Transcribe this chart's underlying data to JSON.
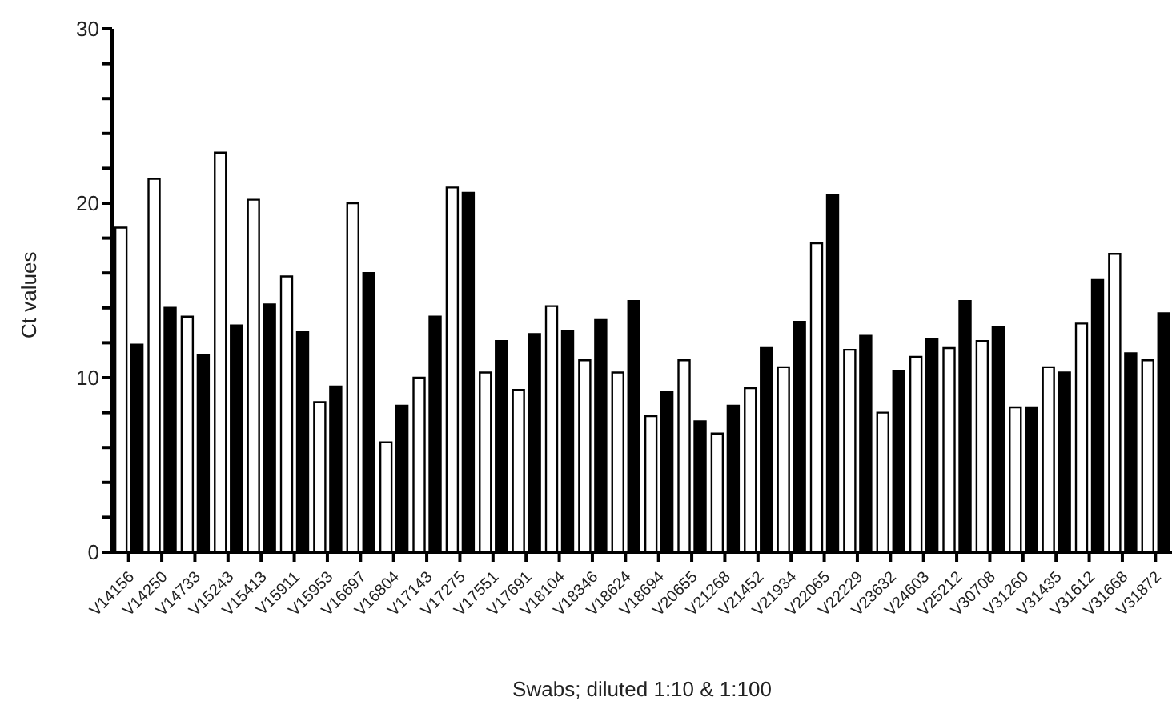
{
  "chart_data": {
    "type": "bar",
    "xlabel": "Swabs; diluted 1:10 & 1:100",
    "ylabel": "Ct values",
    "categories": [
      "V14156",
      "V14250",
      "V14733",
      "V15243",
      "V15413",
      "V15911",
      "V15953",
      "V16697",
      "V16804",
      "V17143",
      "V17275",
      "V17551",
      "V17691",
      "V18104",
      "V18346",
      "V18624",
      "V18694",
      "V20655",
      "V21268",
      "V21452",
      "V21934",
      "V22065",
      "V22229",
      "V23632",
      "V24603",
      "V25212",
      "V30708",
      "V31260",
      "V31435",
      "V31612",
      "V31668",
      "V31872"
    ],
    "series": [
      {
        "color": "#ffffff",
        "values": [
          18.6,
          21.4,
          13.5,
          22.9,
          20.2,
          15.8,
          8.6,
          20.0,
          6.3,
          10.0,
          20.9,
          10.3,
          9.3,
          14.1,
          11.0,
          10.3,
          7.8,
          11.0,
          6.8,
          9.4,
          10.6,
          17.7,
          11.6,
          8.0,
          11.2,
          11.7,
          12.1,
          8.3,
          10.6,
          13.1,
          17.1,
          11.0
        ]
      },
      {
        "color": "#000000",
        "values": [
          11.9,
          14.0,
          11.3,
          13.0,
          14.2,
          12.6,
          9.5,
          16.0,
          8.4,
          13.5,
          20.6,
          12.1,
          12.5,
          12.7,
          13.3,
          14.4,
          9.2,
          7.5,
          8.4,
          11.7,
          13.2,
          20.5,
          12.4,
          10.4,
          12.2,
          14.4,
          12.9,
          8.3,
          10.3,
          15.6,
          11.4,
          13.7
        ]
      }
    ],
    "ylim": [
      0,
      30
    ],
    "yticks": [
      0,
      {
        "value": 2,
        "label": null
      },
      {
        "value": 4,
        "label": null
      },
      {
        "value": 6,
        "label": null
      },
      {
        "value": 8,
        "label": null
      },
      10,
      {
        "value": 12,
        "label": null
      },
      {
        "value": 14,
        "label": null
      },
      {
        "value": 16,
        "label": null
      },
      {
        "value": 18,
        "label": null
      },
      20,
      {
        "value": 22,
        "label": null
      },
      {
        "value": 24,
        "label": null
      },
      {
        "value": 26,
        "label": null
      },
      {
        "value": 28,
        "label": null
      },
      30
    ],
    "grid": false,
    "legend": false
  }
}
